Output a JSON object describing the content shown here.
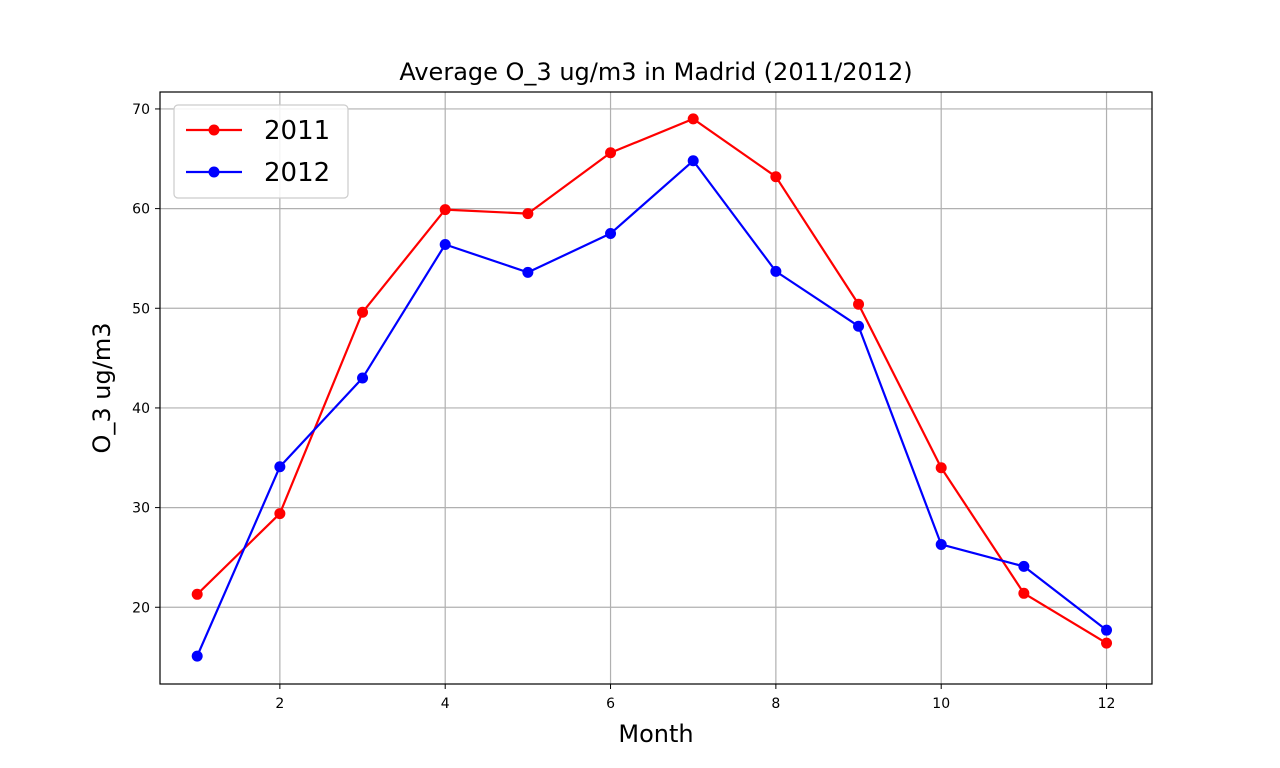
{
  "chart_data": {
    "type": "line",
    "title": "Average O_3 ug/m3 in Madrid (2011/2012)",
    "xlabel": "Month",
    "ylabel": "O_3 ug/m3",
    "xlim": [
      0.55,
      12.55
    ],
    "ylim": [
      12.3,
      71.7
    ],
    "xticks": [
      2,
      4,
      6,
      8,
      10,
      12
    ],
    "yticks": [
      20,
      30,
      40,
      50,
      60,
      70
    ],
    "grid": true,
    "legend_position": "upper-left",
    "x": [
      1,
      2,
      3,
      4,
      5,
      6,
      7,
      8,
      9,
      10,
      11,
      12
    ],
    "series": [
      {
        "name": "2011",
        "color": "#ff0000",
        "marker": "circle",
        "values": [
          21.3,
          29.4,
          49.6,
          59.9,
          59.5,
          65.6,
          69.0,
          63.2,
          50.4,
          34.0,
          21.4,
          16.4
        ]
      },
      {
        "name": "2012",
        "color": "#0000ff",
        "marker": "circle",
        "values": [
          15.1,
          34.1,
          43.0,
          56.4,
          53.6,
          57.5,
          64.8,
          53.7,
          48.2,
          26.3,
          24.1,
          17.7
        ]
      }
    ]
  }
}
